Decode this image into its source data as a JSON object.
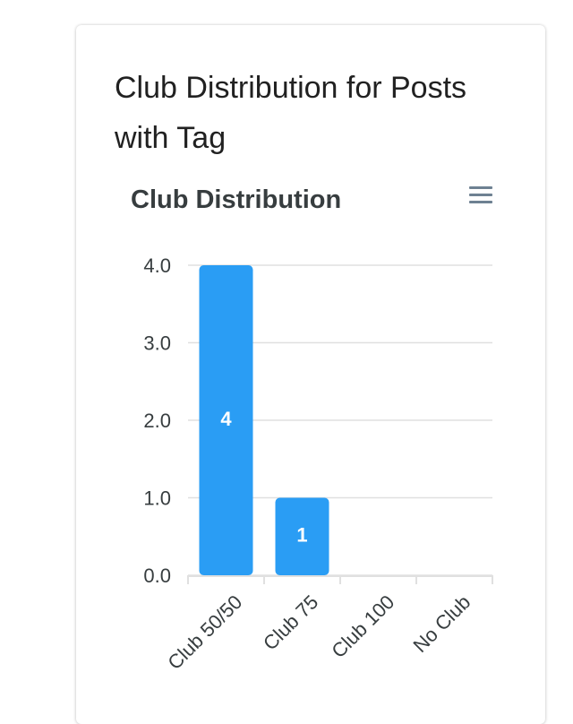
{
  "card": {
    "title": "Club Distribution for Posts with Tag"
  },
  "chart_data": {
    "type": "bar",
    "title": "Club Distribution",
    "categories": [
      "Club 50/50",
      "Club 75",
      "Club 100",
      "No Club"
    ],
    "values": [
      4,
      1,
      0,
      0
    ],
    "ylim": [
      0,
      4
    ],
    "yticks": [
      "0.0",
      "1.0",
      "2.0",
      "3.0",
      "4.0"
    ],
    "xlabel": "",
    "ylabel": "",
    "data_labels": true,
    "grid": true,
    "legend": "none",
    "bar_color": "#2a9df4"
  },
  "toolbar": {
    "menu_icon": "hamburger-icon"
  }
}
